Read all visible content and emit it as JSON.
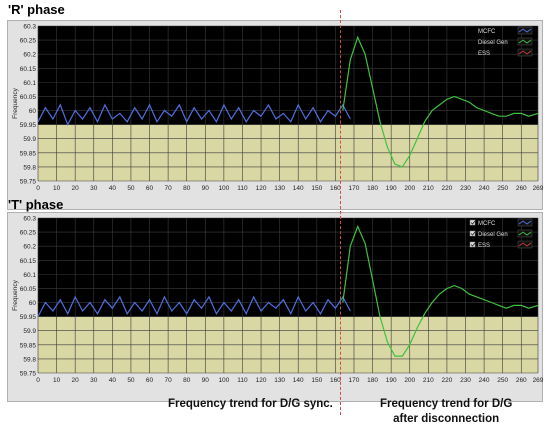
{
  "phases": [
    {
      "label": "'R' phase",
      "show_checkboxes": false
    },
    {
      "label": "'T' phase",
      "show_checkboxes": true
    }
  ],
  "captions": {
    "sync": "Frequency trend for D/G sync.",
    "after_line1": "Frequency trend for D/G",
    "after_line2": "after disconnection"
  },
  "colors": {
    "mcfc": "#4f6fe0",
    "ess": "#c43a3a",
    "diesel": "#3fc13f",
    "plot_bg": "#000000",
    "band": "#d9d7a3",
    "grid": "#3a3a3a",
    "panel": "#e2e2e2",
    "separator": "#d24a4a"
  },
  "chart_data": [
    {
      "type": "line",
      "ylabel": "Frequency",
      "xlim": [
        0,
        269
      ],
      "ylim": [
        59.75,
        60.3
      ],
      "x_ticks": [
        0,
        10,
        20,
        30,
        40,
        50,
        60,
        70,
        80,
        90,
        100,
        110,
        120,
        130,
        140,
        150,
        160,
        170,
        180,
        190,
        200,
        210,
        220,
        230,
        240,
        250,
        260,
        269
      ],
      "y_ticks": [
        "59.75",
        "59.8",
        "59.85",
        "59.9",
        "59.95",
        "60",
        "60.05",
        "60.1",
        "60.15",
        "60.2",
        "60.25",
        "60.3"
      ],
      "grid": true,
      "legend_position": "top-right",
      "series": [
        {
          "name": "MCFC",
          "color": "#4f6fe0",
          "x": [
            0,
            4,
            8,
            12,
            16,
            20,
            24,
            28,
            32,
            36,
            40,
            44,
            48,
            52,
            56,
            60,
            64,
            68,
            72,
            76,
            80,
            84,
            88,
            92,
            96,
            100,
            104,
            108,
            112,
            116,
            120,
            124,
            128,
            132,
            136,
            140,
            144,
            148,
            152,
            156,
            160,
            164,
            168
          ],
          "y": [
            59.96,
            60.01,
            59.97,
            60.02,
            59.95,
            60.0,
            59.97,
            60.01,
            59.96,
            60.02,
            59.97,
            59.99,
            59.96,
            60.01,
            59.97,
            60.02,
            59.96,
            60.0,
            59.98,
            60.02,
            59.96,
            60.01,
            59.97,
            60.0,
            59.96,
            60.02,
            59.97,
            60.01,
            59.96,
            60.0,
            59.98,
            60.02,
            59.97,
            59.99,
            59.96,
            60.02,
            59.97,
            60.01,
            59.96,
            60.0,
            59.98,
            60.02,
            59.97
          ]
        },
        {
          "name": "Diesel Gen",
          "color": "#3fc13f",
          "x": [
            164,
            168,
            172,
            176,
            180,
            184,
            188,
            192,
            196,
            200,
            204,
            208,
            212,
            216,
            220,
            224,
            228,
            232,
            236,
            240,
            244,
            248,
            252,
            256,
            260,
            264,
            269
          ],
          "y": [
            60.0,
            60.18,
            60.26,
            60.2,
            60.08,
            59.96,
            59.87,
            59.81,
            59.8,
            59.84,
            59.9,
            59.96,
            60.0,
            60.02,
            60.04,
            60.05,
            60.04,
            60.03,
            60.01,
            60.0,
            59.99,
            59.98,
            59.98,
            59.99,
            59.99,
            59.98,
            59.99
          ]
        },
        {
          "name": "ESS",
          "color": "#c43a3a",
          "x": [],
          "y": []
        }
      ]
    },
    {
      "type": "line",
      "ylabel": "Frequency",
      "xlim": [
        0,
        269
      ],
      "ylim": [
        59.75,
        60.3
      ],
      "x_ticks": [
        0,
        10,
        20,
        30,
        40,
        50,
        60,
        70,
        80,
        90,
        100,
        110,
        120,
        130,
        140,
        150,
        160,
        170,
        180,
        190,
        200,
        210,
        220,
        230,
        240,
        250,
        260,
        269
      ],
      "y_ticks": [
        "59.75",
        "59.8",
        "59.85",
        "59.9",
        "59.95",
        "60",
        "60.05",
        "60.1",
        "60.15",
        "60.2",
        "60.25",
        "60.3"
      ],
      "grid": true,
      "legend_position": "top-right",
      "series": [
        {
          "name": "MCFC",
          "color": "#4f6fe0",
          "x": [
            0,
            4,
            8,
            12,
            16,
            20,
            24,
            28,
            32,
            36,
            40,
            44,
            48,
            52,
            56,
            60,
            64,
            68,
            72,
            76,
            80,
            84,
            88,
            92,
            96,
            100,
            104,
            108,
            112,
            116,
            120,
            124,
            128,
            132,
            136,
            140,
            144,
            148,
            152,
            156,
            160,
            164,
            168
          ],
          "y": [
            59.95,
            60.0,
            59.97,
            60.01,
            59.96,
            60.02,
            59.97,
            60.0,
            59.96,
            60.01,
            59.98,
            60.02,
            59.96,
            60.0,
            59.97,
            60.01,
            59.96,
            60.02,
            59.97,
            60.0,
            59.96,
            60.01,
            59.98,
            60.02,
            59.96,
            60.0,
            59.97,
            60.01,
            59.96,
            60.02,
            59.97,
            60.0,
            59.98,
            60.01,
            59.96,
            60.02,
            59.97,
            60.0,
            59.96,
            60.01,
            59.98,
            60.02,
            59.97
          ]
        },
        {
          "name": "Diesel Gen",
          "color": "#3fc13f",
          "x": [
            164,
            168,
            172,
            176,
            180,
            184,
            188,
            192,
            196,
            200,
            204,
            208,
            212,
            216,
            220,
            224,
            228,
            232,
            236,
            240,
            244,
            248,
            252,
            256,
            260,
            264,
            269
          ],
          "y": [
            60.0,
            60.2,
            60.27,
            60.21,
            60.08,
            59.95,
            59.86,
            59.81,
            59.81,
            59.85,
            59.91,
            59.96,
            60.0,
            60.03,
            60.05,
            60.06,
            60.05,
            60.03,
            60.02,
            60.01,
            60.0,
            59.99,
            59.98,
            59.99,
            59.99,
            59.98,
            59.99
          ]
        },
        {
          "name": "ESS",
          "color": "#c43a3a",
          "x": [],
          "y": []
        }
      ]
    }
  ]
}
